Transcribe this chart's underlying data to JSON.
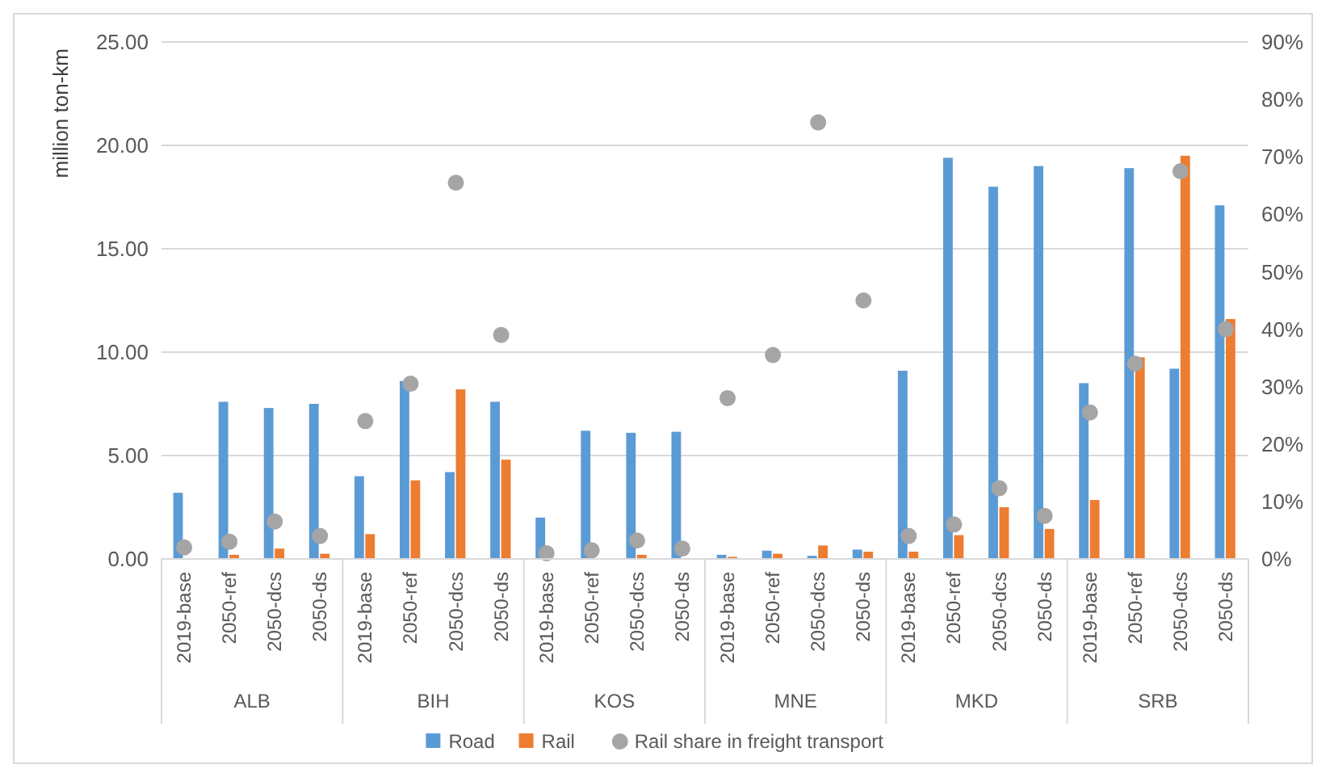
{
  "chart_data": {
    "type": "bar",
    "ylabel": "million ton-km",
    "categories": [
      "2019-base",
      "2050-ref",
      "2050-dcs",
      "2050-ds",
      "2019-base",
      "2050-ref",
      "2050-dcs",
      "2050-ds",
      "2019-base",
      "2050-ref",
      "2050-dcs",
      "2050-ds",
      "2019-base",
      "2050-ref",
      "2050-dcs",
      "2050-ds",
      "2019-base",
      "2050-ref",
      "2050-dcs",
      "2050-ds",
      "2019-base",
      "2050-ref",
      "2050-dcs",
      "2050-ds"
    ],
    "annotations": [
      "ALB",
      "BIH",
      "KOS",
      "MNE",
      "MKD",
      "SRB"
    ],
    "series": [
      {
        "name": "Road",
        "color": "#5b9bd5",
        "values": [
          3.2,
          7.6,
          7.3,
          7.5,
          4.0,
          8.6,
          4.2,
          7.6,
          2.0,
          6.2,
          6.1,
          6.15,
          0.2,
          0.4,
          0.15,
          0.45,
          9.1,
          19.4,
          18.0,
          19.0,
          8.5,
          18.9,
          9.2,
          17.1
        ]
      },
      {
        "name": "Rail",
        "color": "#ed7d31",
        "values": [
          null,
          0.2,
          0.5,
          0.25,
          1.2,
          3.8,
          8.2,
          4.8,
          0.0,
          null,
          0.2,
          null,
          0.1,
          0.25,
          0.65,
          0.35,
          0.35,
          1.15,
          2.5,
          1.45,
          2.85,
          9.75,
          19.5,
          11.6
        ]
      },
      {
        "name": "Rail share in freight transport",
        "type": "scatter",
        "axis": "y2",
        "marker": "circle",
        "color": "#a5a5a5",
        "values": [
          2,
          3,
          6.5,
          4,
          24,
          30.5,
          65.5,
          39,
          1,
          1.5,
          3.2,
          1.8,
          28,
          35.5,
          76,
          45,
          4,
          6,
          12.3,
          7.5,
          25.5,
          34,
          67.5,
          40
        ]
      }
    ],
    "ylim": [
      0,
      25
    ],
    "yticks": [
      {
        "value": 0,
        "label": "0.00"
      },
      {
        "value": 5,
        "label": "5.00"
      },
      {
        "value": 10,
        "label": "10.00"
      },
      {
        "value": 15,
        "label": "15.00"
      },
      {
        "value": 20,
        "label": "20.00"
      },
      {
        "value": 25,
        "label": "25.00"
      }
    ],
    "y2lim": [
      0,
      90
    ],
    "y2ticks": [
      {
        "value": 0,
        "label": "0%"
      },
      {
        "value": 10,
        "label": "10%"
      },
      {
        "value": 20,
        "label": "20%"
      },
      {
        "value": 30,
        "label": "30%"
      },
      {
        "value": 40,
        "label": "40%"
      },
      {
        "value": 50,
        "label": "50%"
      },
      {
        "value": 60,
        "label": "60%"
      },
      {
        "value": 70,
        "label": "70%"
      },
      {
        "value": 80,
        "label": "80%"
      },
      {
        "value": 90,
        "label": "90%"
      }
    ],
    "grid": "y",
    "legend": "bottom"
  }
}
